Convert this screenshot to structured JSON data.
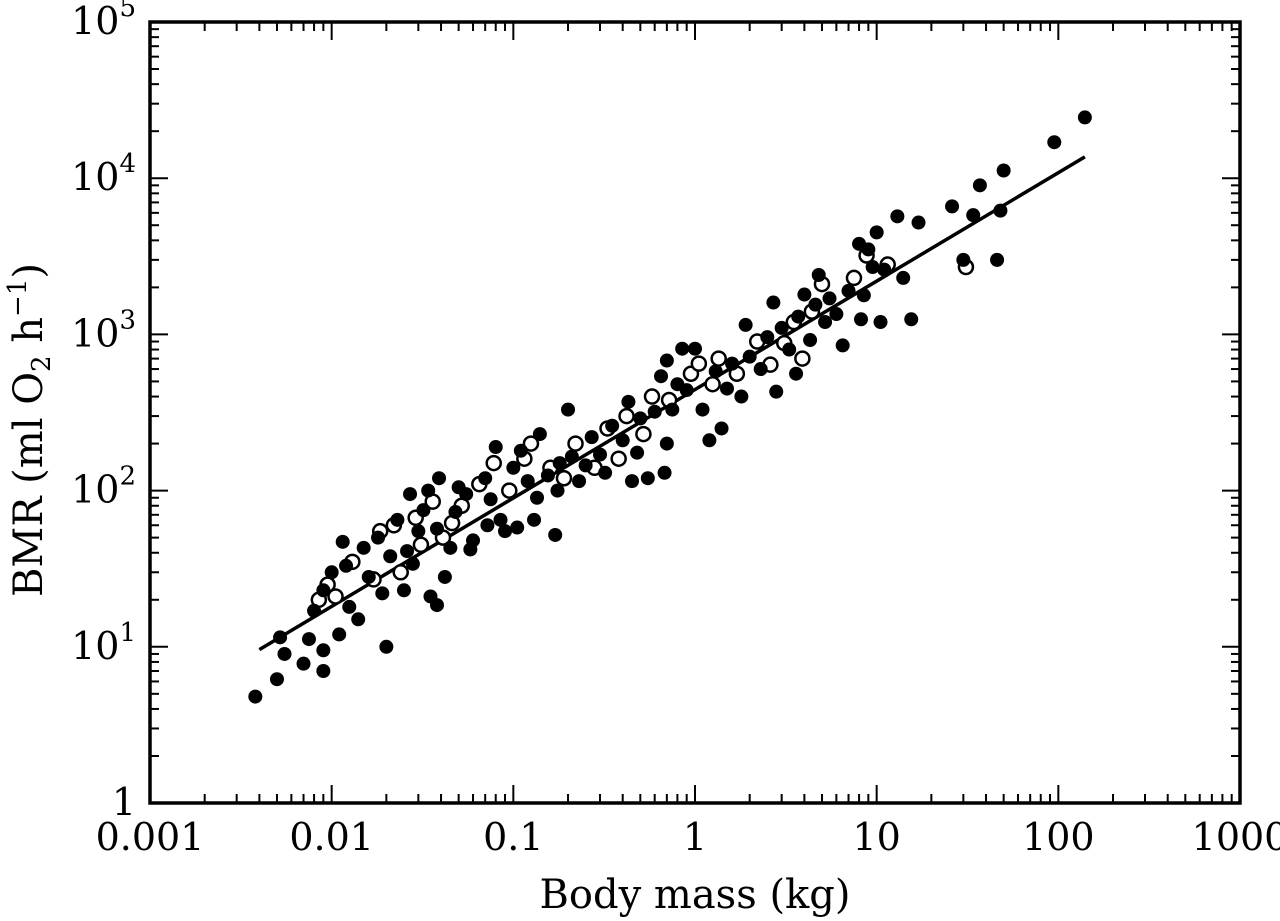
{
  "chart_data": {
    "type": "scatter",
    "xlabel": "Body mass (kg)",
    "ylabel_parts": [
      "BMR (ml O",
      "2",
      " h",
      "−1",
      ")"
    ],
    "xscale": "log",
    "yscale": "log",
    "xlim": [
      0.001,
      1000
    ],
    "ylim": [
      1,
      100000
    ],
    "xticks": [
      "0.001",
      "0.01",
      "0.1",
      "1",
      "10",
      "100",
      "1000"
    ],
    "yticks": [
      {
        "base": "1",
        "exp": ""
      },
      {
        "base": "10",
        "exp": "1"
      },
      {
        "base": "10",
        "exp": "2"
      },
      {
        "base": "10",
        "exp": "3"
      },
      {
        "base": "10",
        "exp": "4"
      },
      {
        "base": "10",
        "exp": "5"
      }
    ],
    "grid": false,
    "legend": "none",
    "fit_line": {
      "x": [
        0.004,
        140
      ],
      "y": [
        9.6,
        13700
      ]
    },
    "series": [
      {
        "marker": "filled",
        "color": "#000000",
        "points": [
          [
            0.0038,
            4.8
          ],
          [
            0.005,
            6.2
          ],
          [
            0.0052,
            11.5
          ],
          [
            0.0055,
            9.0
          ],
          [
            0.007,
            7.8
          ],
          [
            0.0075,
            11.2
          ],
          [
            0.008,
            17.0
          ],
          [
            0.009,
            7.0
          ],
          [
            0.009,
            9.5
          ],
          [
            0.009,
            23.0
          ],
          [
            0.01,
            30.0
          ],
          [
            0.011,
            12.0
          ],
          [
            0.0115,
            47.0
          ],
          [
            0.012,
            33.0
          ],
          [
            0.0125,
            18.0
          ],
          [
            0.014,
            15.0
          ],
          [
            0.015,
            43.0
          ],
          [
            0.016,
            28.0
          ],
          [
            0.018,
            50.0
          ],
          [
            0.019,
            22.0
          ],
          [
            0.02,
            10.0
          ],
          [
            0.021,
            38.0
          ],
          [
            0.023,
            65.0
          ],
          [
            0.025,
            23.0
          ],
          [
            0.026,
            41.0
          ],
          [
            0.027,
            95.0
          ],
          [
            0.028,
            34.0
          ],
          [
            0.03,
            55.0
          ],
          [
            0.032,
            75.0
          ],
          [
            0.034,
            100.0
          ],
          [
            0.035,
            21.0
          ],
          [
            0.038,
            18.5
          ],
          [
            0.038,
            57.0
          ],
          [
            0.039,
            120.0
          ],
          [
            0.042,
            28.0
          ],
          [
            0.045,
            43.0
          ],
          [
            0.048,
            73.0
          ],
          [
            0.05,
            105.0
          ],
          [
            0.055,
            95.0
          ],
          [
            0.058,
            42.0
          ],
          [
            0.06,
            48.0
          ],
          [
            0.07,
            120.0
          ],
          [
            0.072,
            60.0
          ],
          [
            0.075,
            88.0
          ],
          [
            0.08,
            190.0
          ],
          [
            0.085,
            65.0
          ],
          [
            0.09,
            55.0
          ],
          [
            0.1,
            140.0
          ],
          [
            0.105,
            58.0
          ],
          [
            0.11,
            180.0
          ],
          [
            0.12,
            115.0
          ],
          [
            0.13,
            65.0
          ],
          [
            0.135,
            90.0
          ],
          [
            0.14,
            230.0
          ],
          [
            0.155,
            125.0
          ],
          [
            0.17,
            52.0
          ],
          [
            0.175,
            100.0
          ],
          [
            0.18,
            150.0
          ],
          [
            0.2,
            330.0
          ],
          [
            0.21,
            165.0
          ],
          [
            0.23,
            115.0
          ],
          [
            0.25,
            145.0
          ],
          [
            0.27,
            220.0
          ],
          [
            0.3,
            170.0
          ],
          [
            0.32,
            130.0
          ],
          [
            0.35,
            260.0
          ],
          [
            0.4,
            210.0
          ],
          [
            0.43,
            370.0
          ],
          [
            0.45,
            115.0
          ],
          [
            0.48,
            175.0
          ],
          [
            0.5,
            290.0
          ],
          [
            0.55,
            120.0
          ],
          [
            0.6,
            320.0
          ],
          [
            0.65,
            540.0
          ],
          [
            0.68,
            130.0
          ],
          [
            0.7,
            200.0
          ],
          [
            0.7,
            680.0
          ],
          [
            0.75,
            330.0
          ],
          [
            0.8,
            480.0
          ],
          [
            0.85,
            810.0
          ],
          [
            0.9,
            440.0
          ],
          [
            1.0,
            810.0
          ],
          [
            1.1,
            330.0
          ],
          [
            1.2,
            210.0
          ],
          [
            1.3,
            580.0
          ],
          [
            1.4,
            250.0
          ],
          [
            1.5,
            450.0
          ],
          [
            1.6,
            650.0
          ],
          [
            1.8,
            400.0
          ],
          [
            1.9,
            1150.0
          ],
          [
            2.0,
            720.0
          ],
          [
            2.3,
            600.0
          ],
          [
            2.5,
            960.0
          ],
          [
            2.7,
            1600.0
          ],
          [
            2.8,
            430.0
          ],
          [
            3.0,
            1100.0
          ],
          [
            3.3,
            800.0
          ],
          [
            3.6,
            560.0
          ],
          [
            3.7,
            1300.0
          ],
          [
            4.0,
            1800.0
          ],
          [
            4.3,
            920.0
          ],
          [
            4.6,
            1550.0
          ],
          [
            4.8,
            2400.0
          ],
          [
            5.2,
            1200.0
          ],
          [
            5.5,
            1700.0
          ],
          [
            6.0,
            1350.0
          ],
          [
            6.5,
            850.0
          ],
          [
            7.0,
            1900.0
          ],
          [
            8.0,
            3800.0
          ],
          [
            8.2,
            1250.0
          ],
          [
            8.5,
            1780.0
          ],
          [
            9.0,
            3500.0
          ],
          [
            9.5,
            2700.0
          ],
          [
            10.0,
            4500.0
          ],
          [
            10.5,
            1200.0
          ],
          [
            11.0,
            2600.0
          ],
          [
            13.0,
            5700.0
          ],
          [
            14.0,
            2300.0
          ],
          [
            15.5,
            1250.0
          ],
          [
            17.0,
            5200.0
          ],
          [
            26.0,
            6600.0
          ],
          [
            30.0,
            3000.0
          ],
          [
            34.0,
            5800.0
          ],
          [
            37.0,
            9000.0
          ],
          [
            46.0,
            3000.0
          ],
          [
            48.0,
            6200.0
          ],
          [
            50.0,
            11200.0
          ],
          [
            95.0,
            17000.0
          ],
          [
            140.0,
            24500.0
          ]
        ]
      },
      {
        "marker": "open",
        "color": "#000000",
        "points": [
          [
            0.0085,
            20.0
          ],
          [
            0.0095,
            25.0
          ],
          [
            0.0105,
            21.0
          ],
          [
            0.013,
            35.0
          ],
          [
            0.017,
            27.0
          ],
          [
            0.0185,
            55.0
          ],
          [
            0.022,
            60.0
          ],
          [
            0.024,
            30.0
          ],
          [
            0.029,
            67.0
          ],
          [
            0.031,
            45.0
          ],
          [
            0.036,
            85.0
          ],
          [
            0.041,
            50.0
          ],
          [
            0.046,
            62.0
          ],
          [
            0.052,
            80.0
          ],
          [
            0.065,
            110.0
          ],
          [
            0.078,
            150.0
          ],
          [
            0.095,
            100.0
          ],
          [
            0.115,
            160.0
          ],
          [
            0.125,
            200.0
          ],
          [
            0.16,
            140.0
          ],
          [
            0.19,
            120.0
          ],
          [
            0.22,
            200.0
          ],
          [
            0.28,
            140.0
          ],
          [
            0.33,
            250.0
          ],
          [
            0.38,
            160.0
          ],
          [
            0.42,
            300.0
          ],
          [
            0.52,
            230.0
          ],
          [
            0.58,
            400.0
          ],
          [
            0.72,
            380.0
          ],
          [
            0.95,
            560.0
          ],
          [
            1.05,
            650.0
          ],
          [
            1.25,
            480.0
          ],
          [
            1.35,
            700.0
          ],
          [
            1.7,
            560.0
          ],
          [
            2.2,
            900.0
          ],
          [
            2.6,
            640.0
          ],
          [
            3.1,
            880.0
          ],
          [
            3.5,
            1200.0
          ],
          [
            3.9,
            700.0
          ],
          [
            4.4,
            1400.0
          ],
          [
            5.0,
            2100.0
          ],
          [
            7.5,
            2300.0
          ],
          [
            8.8,
            3200.0
          ],
          [
            11.5,
            2800.0
          ],
          [
            31.0,
            2700.0
          ]
        ]
      }
    ]
  }
}
